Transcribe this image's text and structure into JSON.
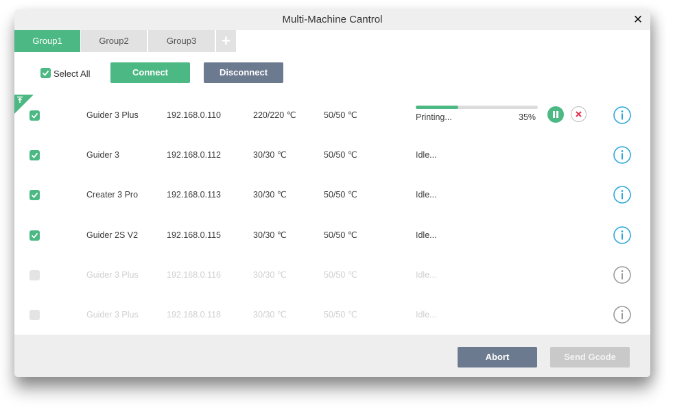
{
  "window": {
    "title": "Multi-Machine Cantrol",
    "close_icon": "close-icon"
  },
  "tabs": [
    {
      "label": "Group1",
      "active": true
    },
    {
      "label": "Group2",
      "active": false
    },
    {
      "label": "Group3",
      "active": false
    }
  ],
  "toolbar": {
    "select_all_label": "Select All",
    "select_all_checked": true,
    "connect_label": "Connect",
    "disconnect_label": "Disconnect"
  },
  "machines": [
    {
      "name": "Guider 3 Plus",
      "ip": "192.168.0.110",
      "nozzle": "220/220 ℃",
      "bed": "50/50 ℃",
      "status": "Printing...",
      "progress": 0.35,
      "progress_text": "35%",
      "checked": true,
      "enabled": true
    },
    {
      "name": "Guider 3",
      "ip": "192.168.0.112",
      "nozzle": "30/30 ℃",
      "bed": "50/50 ℃",
      "status": "Idle...",
      "checked": true,
      "enabled": true
    },
    {
      "name": "Creater 3 Pro",
      "ip": "192.168.0.113",
      "nozzle": "30/30 ℃",
      "bed": "50/50 ℃",
      "status": "Idle...",
      "checked": true,
      "enabled": true
    },
    {
      "name": "Guider 2S V2",
      "ip": "192.168.0.115",
      "nozzle": "30/30 ℃",
      "bed": "50/50 ℃",
      "status": "Idle...",
      "checked": true,
      "enabled": true
    },
    {
      "name": "Guider 3 Plus",
      "ip": "192.168.0.116",
      "nozzle": "30/30 ℃",
      "bed": "50/50 ℃",
      "status": "Idle...",
      "checked": false,
      "enabled": false
    },
    {
      "name": "Guider 3 Plus",
      "ip": "192.168.0.118",
      "nozzle": "30/30 ℃",
      "bed": "50/50 ℃",
      "status": "Idle...",
      "checked": false,
      "enabled": false
    }
  ],
  "footer": {
    "abort_label": "Abort",
    "send_gcode_label": "Send Gcode",
    "send_gcode_enabled": false
  },
  "colors": {
    "accent": "#4cb883",
    "slate": "#6c7a8f",
    "info_active": "#2aa7dc",
    "info_inactive": "#9a9a9a",
    "danger": "#e03b55"
  }
}
